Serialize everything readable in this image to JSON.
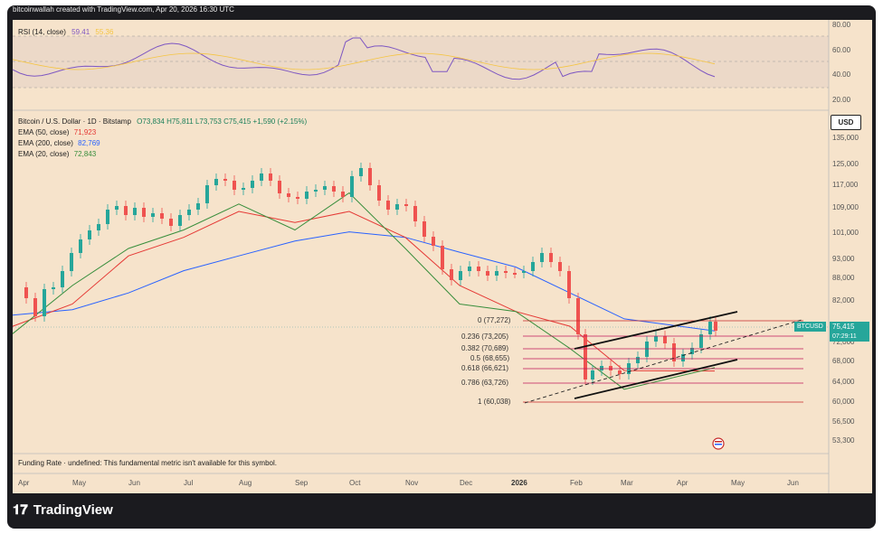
{
  "header": {
    "text": "bitcoinwallah created with TradingView.com, Apr 20, 2026 16:30 UTC"
  },
  "rsi": {
    "label": "RSI (14, close)",
    "value": "59.41",
    "value2": "55.36",
    "ticks": [
      "80.00",
      "60.00",
      "40.00",
      "20.00"
    ],
    "line_color": "#7e57c2",
    "ma_color": "#f5c542"
  },
  "legend": {
    "symbol": "Bitcoin / U.S. Dollar · 1D · Bitstamp",
    "ohlc": "O73,834 H75,811 L73,753 C75,415 +1,590 (+2.15%)",
    "ema50": {
      "label": "EMA (50, close)",
      "value": "71,923",
      "color": "#e53935"
    },
    "ema200": {
      "label": "EMA (200, close)",
      "value": "82,769",
      "color": "#2962ff"
    },
    "ema20": {
      "label": "EMA (20, close)",
      "value": "72,843",
      "color": "#388e3c"
    }
  },
  "price_axis": {
    "currency": "USD",
    "ticks": [
      "135,000",
      "125,000",
      "117,000",
      "109,000",
      "101,000",
      "93,000",
      "88,000",
      "82,000",
      "72,000",
      "68,000",
      "64,000",
      "60,000",
      "56,500",
      "53,300"
    ]
  },
  "current": {
    "symbol": "BTCUSD",
    "price": "75,415",
    "timer": "07:29:11"
  },
  "fib_levels": [
    {
      "label": "0 (77,272)"
    },
    {
      "label": "0.236 (73,205)"
    },
    {
      "label": "0.382 (70,689)"
    },
    {
      "label": "0.5 (68,655)"
    },
    {
      "label": "0.618 (66,621)"
    },
    {
      "label": "0.786 (63,726)"
    },
    {
      "label": "1 (60,038)"
    }
  ],
  "funding": "Funding Rate · undefined: This fundamental metric isn't available for this symbol.",
  "time_axis": [
    "Apr",
    "May",
    "Jun",
    "Jul",
    "Aug",
    "Sep",
    "Oct",
    "Nov",
    "Dec",
    "2026",
    "Feb",
    "Mar",
    "Apr",
    "May",
    "Jun"
  ],
  "brand": "TradingView",
  "chart_data": {
    "type": "line",
    "title": "Bitcoin / U.S. Dollar · 1D · Bitstamp",
    "x": [
      "Apr",
      "May",
      "Jun",
      "Jul",
      "Aug",
      "Sep",
      "Oct",
      "Nov",
      "Dec",
      "2026",
      "Feb",
      "Mar",
      "Apr"
    ],
    "series": [
      {
        "name": "EMA (50, close)",
        "values": [
          84000,
          90000,
          103000,
          108000,
          115000,
          112000,
          115000,
          108000,
          95000,
          88000,
          84000,
          72000,
          71923
        ]
      },
      {
        "name": "EMA (200, close)",
        "values": [
          87000,
          88500,
          93000,
          99000,
          103000,
          107000,
          109500,
          108000,
          104000,
          100000,
          93000,
          86000,
          82769
        ]
      },
      {
        "name": "EMA (20, close)",
        "values": [
          82000,
          95000,
          105000,
          110000,
          117000,
          110000,
          120000,
          105000,
          90000,
          88000,
          78000,
          67000,
          72843
        ]
      }
    ],
    "ylim": [
      53300,
      135000
    ]
  }
}
